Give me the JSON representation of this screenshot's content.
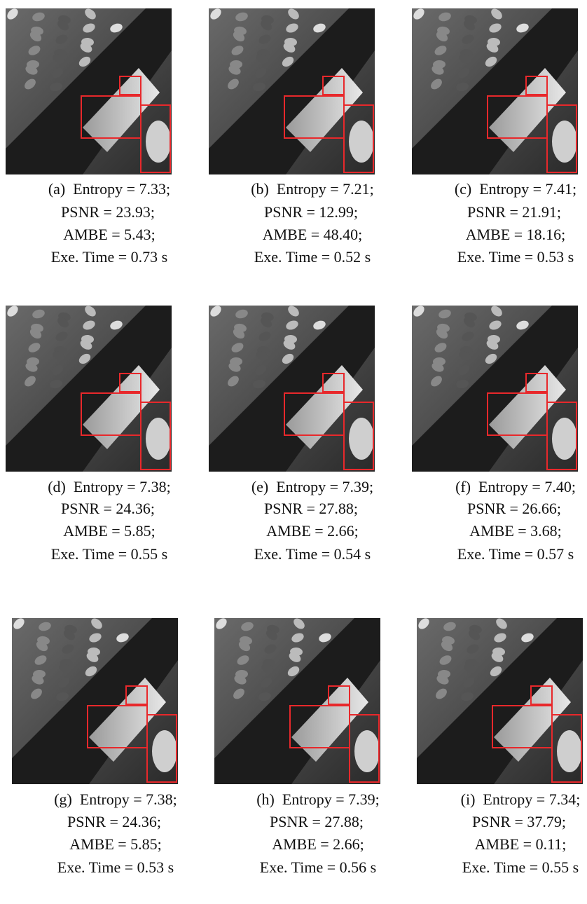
{
  "figure": {
    "panels": [
      {
        "lines": [
          "(a)  Entropy = 7.33;",
          "PSNR = 23.93;",
          "AMBE = 5.43;",
          "Exe. Time = 0.73 s"
        ]
      },
      {
        "lines": [
          "(b)  Entropy = 7.21;",
          "PSNR = 12.99;",
          "AMBE = 48.40;",
          "Exe. Time = 0.52 s"
        ]
      },
      {
        "lines": [
          "(c)  Entropy = 7.41;",
          "PSNR = 21.91;",
          "AMBE = 18.16;",
          "Exe. Time = 0.53 s"
        ]
      },
      {
        "lines": [
          "(d)  Entropy = 7.38;",
          "PSNR = 24.36;",
          "AMBE = 5.85;",
          "Exe. Time = 0.55 s"
        ]
      },
      {
        "lines": [
          "(e)  Entropy = 7.39;",
          "PSNR = 27.88;",
          "AMBE = 2.66;",
          "Exe. Time = 0.54 s"
        ]
      },
      {
        "lines": [
          "(f)  Entropy = 7.40;",
          "PSNR = 26.66;",
          "AMBE = 3.68;",
          "Exe. Time = 0.57 s"
        ]
      },
      {
        "lines": [
          "(g)  Entropy = 7.38;",
          "PSNR = 24.36;",
          "AMBE = 5.85;",
          "Exe. Time = 0.53 s"
        ]
      },
      {
        "lines": [
          "(h)  Entropy = 7.39;",
          "PSNR = 27.88;",
          "AMBE = 2.66;",
          "Exe. Time = 0.56 s"
        ]
      },
      {
        "lines": [
          "(i)  Entropy = 7.34;",
          "PSNR = 37.79;",
          "AMBE = 0.11;",
          "Exe. Time = 0.55 s"
        ]
      }
    ]
  }
}
